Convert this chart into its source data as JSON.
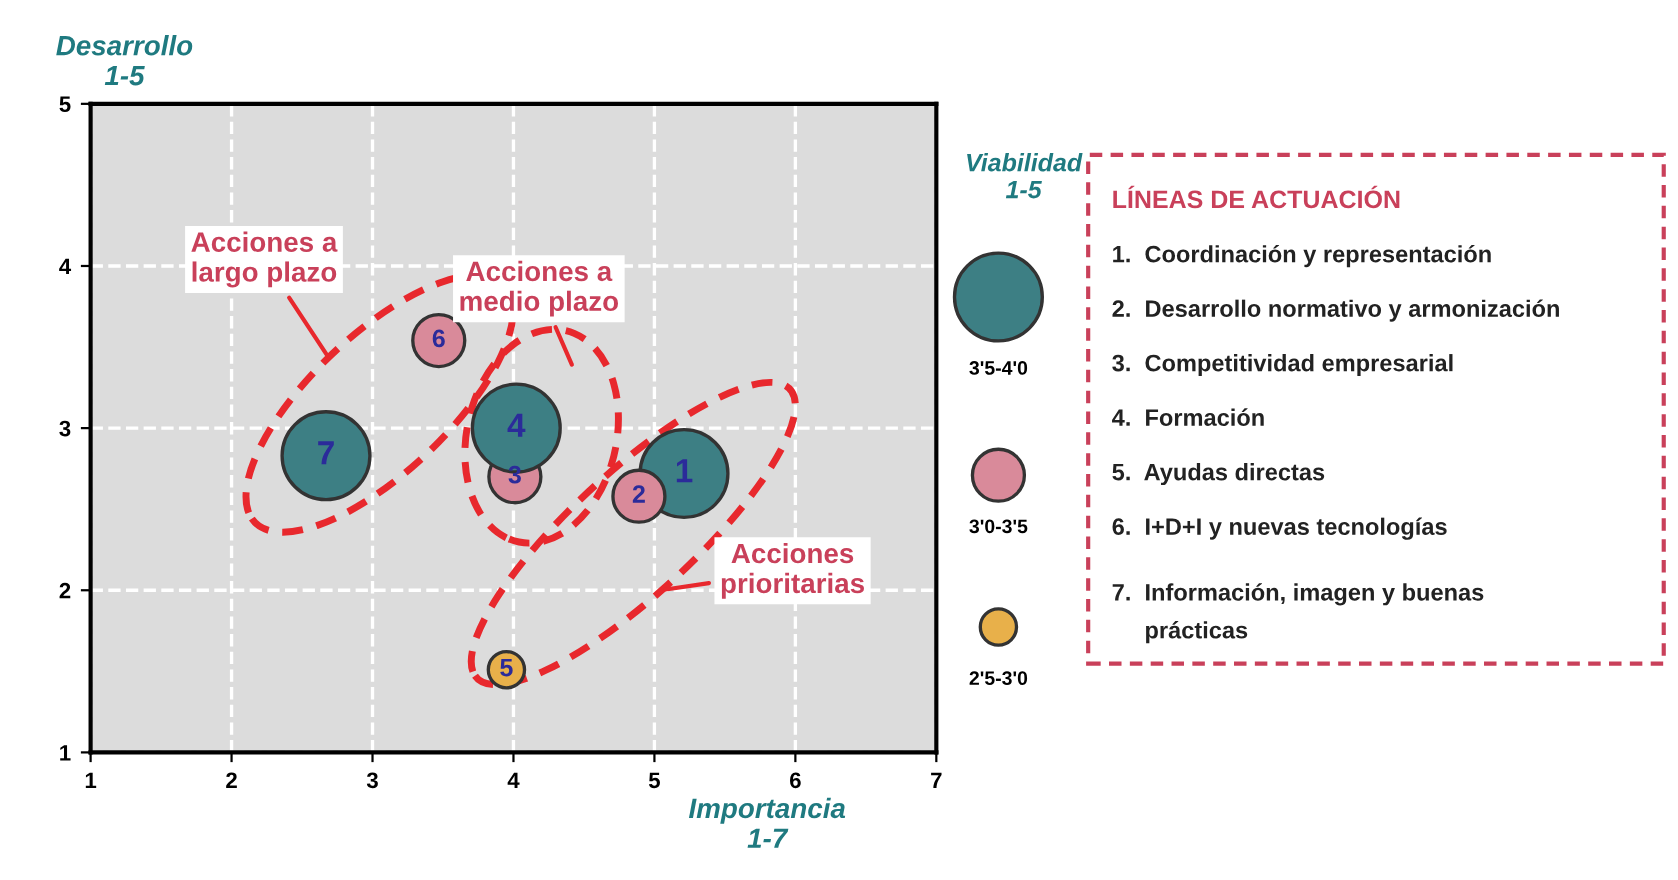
{
  "chart_data": {
    "type": "bubble",
    "xlabel": "Importancia\n1-7",
    "ylabel": "Desarrollo\n1-5",
    "legend_title": "Viabilidad\n1-5",
    "xlim": [
      1,
      7
    ],
    "ylim": [
      1,
      5
    ],
    "xticks": [
      1,
      2,
      3,
      4,
      5,
      6,
      7
    ],
    "yticks": [
      1,
      2,
      3,
      4,
      5
    ],
    "grid": true,
    "series": [
      {
        "x": [
          5.21,
          4.89,
          4.01,
          4.02,
          3.95,
          3.47,
          2.67
        ],
        "values": [
          2.72,
          2.58,
          2.7,
          3.0,
          1.51,
          3.54,
          2.83
        ],
        "sizes": [
          1,
          0.35,
          0.35,
          1,
          0.17,
          0.35,
          1
        ],
        "colors": [
          "#3d7f84",
          "#d98a9a",
          "#d98a9a",
          "#3d7f84",
          "#e8b04a",
          "#d98a9a",
          "#3d7f84"
        ]
      }
    ],
    "size_legend": [
      {
        "value": 1,
        "label": "3'5-4'0"
      },
      {
        "value": 0.35,
        "label": "3'0-3'5"
      },
      {
        "value": 0.17,
        "label": "2'5-3'0"
      }
    ],
    "annotations": [
      {
        "text": "1",
        "x": 5.21,
        "y": 2.72
      },
      {
        "text": "2",
        "x": 4.89,
        "y": 2.58
      },
      {
        "text": "3",
        "x": 4.01,
        "y": 2.7
      },
      {
        "text": "4",
        "x": 4.02,
        "y": 3.0
      },
      {
        "text": "5",
        "x": 3.95,
        "y": 1.51
      },
      {
        "text": "6",
        "x": 3.47,
        "y": 3.54
      },
      {
        "text": "7",
        "x": 2.67,
        "y": 2.83
      },
      "Acciones a\nlargo plazo",
      "Acciones a\nmedio plazo",
      "Acciones\nprioritarias",
      "LÍNEAS DE ACTUACIÓN",
      "1.  Coordinación y representación",
      "2.  Desarrollo normativo y armonización",
      "3.  Competitividad empresarial",
      "4.  Formación",
      "5.  Ayudas directas",
      "6.  I+D+I y nuevas tecnologías",
      "7.  Información, imagen y buenas\n     prácticas"
    ]
  }
}
